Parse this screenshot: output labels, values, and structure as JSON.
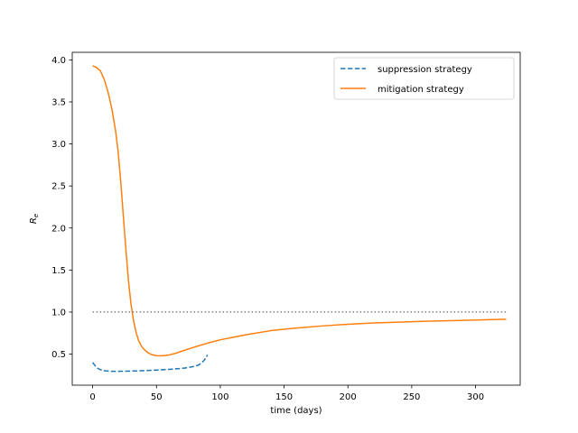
{
  "chart_data": {
    "type": "line",
    "xlabel": "time (days)",
    "ylabel_base": "R",
    "ylabel_sub": "e",
    "xlim": [
      -16,
      335
    ],
    "ylim": [
      0.13,
      4.09
    ],
    "xticks": [
      0,
      50,
      100,
      150,
      200,
      250,
      300
    ],
    "yticks": [
      0.5,
      1.0,
      1.5,
      2.0,
      2.5,
      3.0,
      3.5,
      4.0
    ],
    "xtick_labels": [
      "0",
      "50",
      "100",
      "150",
      "200",
      "250",
      "300"
    ],
    "ytick_labels": [
      "0.5",
      "1.0",
      "1.5",
      "2.0",
      "2.5",
      "3.0",
      "3.5",
      "4.0"
    ],
    "grid": false,
    "legend_position": "top-right",
    "series": [
      {
        "name": "suppression strategy",
        "color": "#1f77b4",
        "style": "dashed",
        "x": [
          0,
          2,
          4,
          6,
          8,
          10,
          15,
          20,
          30,
          40,
          50,
          60,
          70,
          75,
          80,
          83,
          85,
          87,
          89,
          90
        ],
        "y": [
          0.4,
          0.36,
          0.33,
          0.315,
          0.305,
          0.3,
          0.295,
          0.295,
          0.298,
          0.303,
          0.31,
          0.318,
          0.33,
          0.34,
          0.355,
          0.37,
          0.39,
          0.42,
          0.46,
          0.49
        ]
      },
      {
        "name": "mitigation strategy",
        "color": "#ff7f0e",
        "style": "solid",
        "x": [
          0,
          3,
          6,
          9,
          12,
          15,
          18,
          20,
          22,
          24,
          26,
          28,
          30,
          32,
          34,
          36,
          38,
          40,
          43,
          46,
          50,
          55,
          60,
          65,
          70,
          80,
          90,
          100,
          120,
          140,
          160,
          180,
          200,
          220,
          240,
          260,
          280,
          300,
          324
        ],
        "y": [
          3.93,
          3.91,
          3.87,
          3.77,
          3.62,
          3.42,
          3.15,
          2.9,
          2.55,
          2.15,
          1.75,
          1.38,
          1.1,
          0.9,
          0.76,
          0.66,
          0.6,
          0.56,
          0.52,
          0.495,
          0.48,
          0.48,
          0.49,
          0.51,
          0.535,
          0.585,
          0.63,
          0.67,
          0.73,
          0.78,
          0.81,
          0.835,
          0.855,
          0.87,
          0.88,
          0.89,
          0.898,
          0.905,
          0.915
        ]
      },
      {
        "name": "",
        "color": "#808080",
        "style": "dotted",
        "x": [
          0,
          324
        ],
        "y": [
          1.0,
          1.0
        ]
      }
    ]
  }
}
